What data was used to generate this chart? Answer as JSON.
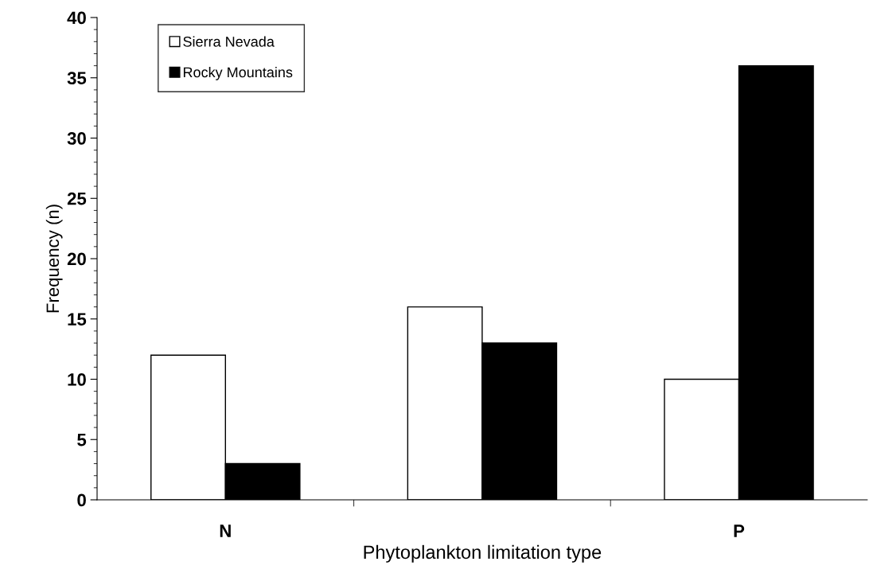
{
  "chart_data": {
    "type": "bar",
    "xlabel": "Phytoplankton limitation type",
    "ylabel": "Frequency (n)",
    "categories": [
      "N",
      null,
      "P"
    ],
    "series": [
      {
        "name": "Sierra Nevada",
        "color": "#ffffff",
        "values": [
          12,
          16,
          10
        ]
      },
      {
        "name": "Rocky Mountains",
        "color": "#000000",
        "values": [
          3,
          13,
          36
        ]
      }
    ],
    "ylim": [
      0,
      40
    ],
    "yticks": [
      0,
      5,
      10,
      15,
      20,
      25,
      30,
      35,
      40
    ],
    "grid": false,
    "legend": "top left"
  }
}
